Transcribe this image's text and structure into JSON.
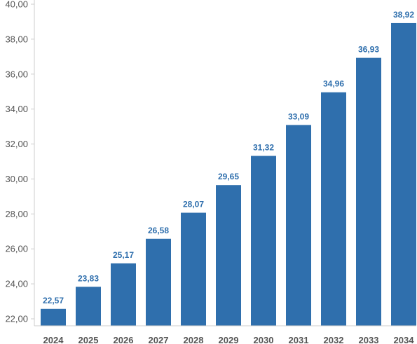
{
  "chart_data": {
    "type": "bar",
    "categories": [
      "2024",
      "2025",
      "2026",
      "2027",
      "2028",
      "2029",
      "2030",
      "2031",
      "2032",
      "2033",
      "2034"
    ],
    "values": [
      22.57,
      23.83,
      25.17,
      26.58,
      28.07,
      29.65,
      31.32,
      33.09,
      34.96,
      36.93,
      38.92
    ],
    "value_labels": [
      "22,57",
      "23,83",
      "25,17",
      "26,58",
      "28,07",
      "29,65",
      "31,32",
      "33,09",
      "34,96",
      "36,93",
      "38,92"
    ],
    "y_ticks": [
      22,
      24,
      26,
      28,
      30,
      32,
      34,
      36,
      38,
      40
    ],
    "y_tick_labels": [
      "22,00",
      "24,00",
      "26,00",
      "28,00",
      "30,00",
      "32,00",
      "34,00",
      "36,00",
      "38,00",
      "40,00"
    ],
    "ylim": [
      21.6,
      40
    ],
    "title": "",
    "xlabel": "",
    "ylabel": "",
    "grid": false,
    "legend": "none",
    "colors": {
      "bar": "#2f6fad",
      "data_label": "#2f6fad",
      "axis": "#cccccc",
      "tick_text": "#555555"
    }
  }
}
